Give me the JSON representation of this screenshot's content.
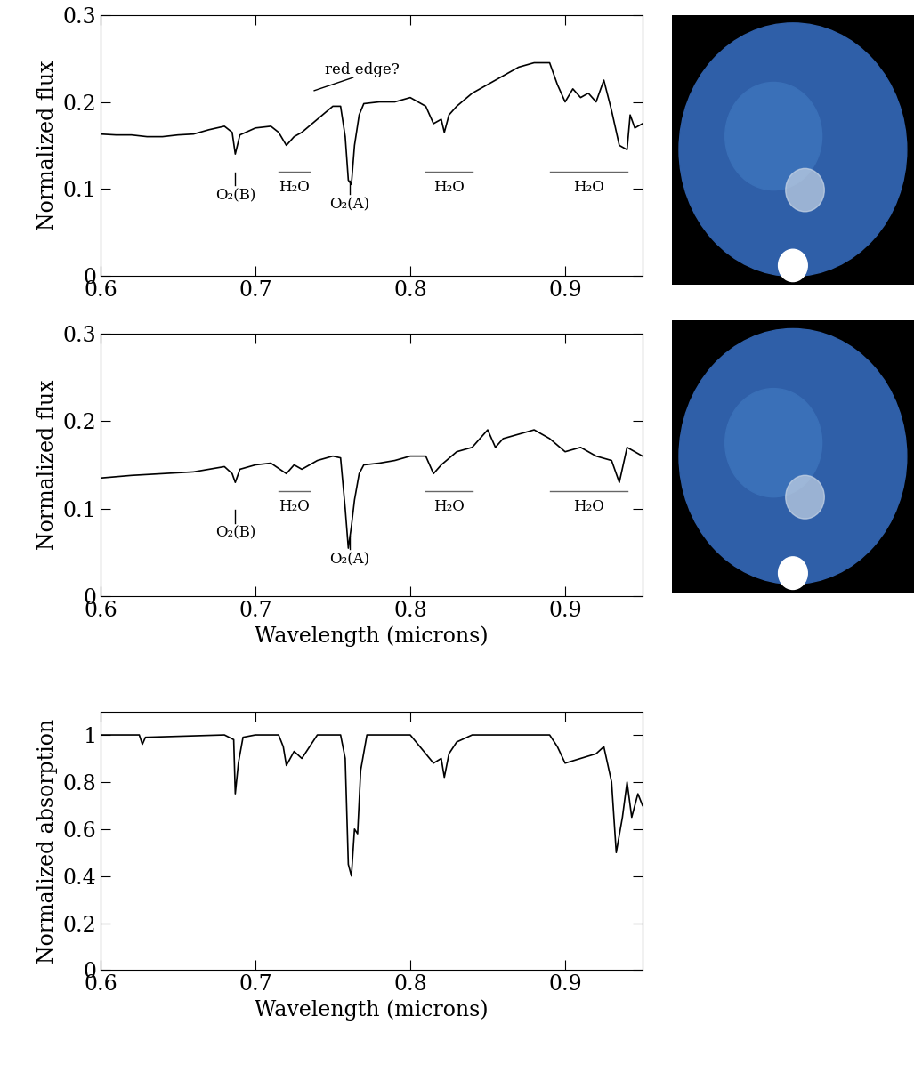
{
  "chart_data": [
    {
      "type": "line",
      "ylabel": "Normalized flux",
      "color": "#000000",
      "xlim": [
        0.6,
        0.95
      ],
      "xticks": [
        0.6,
        0.7,
        0.8,
        0.9
      ],
      "ylim": [
        0,
        0.3
      ],
      "yticks": [
        0,
        0.1,
        0.2,
        0.3
      ],
      "x": [
        0.6,
        0.61,
        0.62,
        0.63,
        0.64,
        0.65,
        0.66,
        0.67,
        0.68,
        0.685,
        0.687,
        0.69,
        0.7,
        0.71,
        0.715,
        0.72,
        0.725,
        0.73,
        0.74,
        0.75,
        0.755,
        0.758,
        0.76,
        0.762,
        0.764,
        0.767,
        0.77,
        0.78,
        0.79,
        0.8,
        0.81,
        0.815,
        0.82,
        0.822,
        0.825,
        0.83,
        0.84,
        0.85,
        0.86,
        0.87,
        0.88,
        0.89,
        0.895,
        0.9,
        0.905,
        0.91,
        0.915,
        0.92,
        0.925,
        0.93,
        0.935,
        0.94,
        0.942,
        0.945,
        0.95
      ],
      "values": [
        0.163,
        0.162,
        0.162,
        0.16,
        0.16,
        0.162,
        0.163,
        0.168,
        0.172,
        0.165,
        0.14,
        0.162,
        0.17,
        0.172,
        0.165,
        0.15,
        0.16,
        0.165,
        0.18,
        0.195,
        0.195,
        0.16,
        0.11,
        0.105,
        0.15,
        0.185,
        0.198,
        0.2,
        0.2,
        0.205,
        0.195,
        0.175,
        0.18,
        0.165,
        0.185,
        0.195,
        0.21,
        0.22,
        0.23,
        0.24,
        0.245,
        0.245,
        0.22,
        0.2,
        0.215,
        0.205,
        0.21,
        0.2,
        0.225,
        0.19,
        0.15,
        0.145,
        0.185,
        0.17,
        0.175
      ],
      "annotations": [
        {
          "text": "O₂(B)",
          "x": 0.687,
          "y": 0.095
        },
        {
          "text": "H₂O",
          "x": [
            0.715,
            0.735
          ],
          "y": 0.12
        },
        {
          "text": "O₂(A)",
          "x": 0.761,
          "y": 0.085
        },
        {
          "text": "H₂O",
          "x": [
            0.81,
            0.84
          ],
          "y": 0.12
        },
        {
          "text": "H₂O",
          "x": [
            0.89,
            0.94
          ],
          "y": 0.12
        },
        {
          "text": "red edge?",
          "x": 0.745,
          "y": 0.228
        }
      ]
    },
    {
      "type": "line",
      "ylabel": "Normalized flux",
      "xlabel": "Wavelength (microns)",
      "color": "#000000",
      "xlim": [
        0.6,
        0.95
      ],
      "xticks": [
        0.6,
        0.7,
        0.8,
        0.9
      ],
      "ylim": [
        0,
        0.3
      ],
      "yticks": [
        0,
        0.1,
        0.2,
        0.3
      ],
      "x": [
        0.6,
        0.62,
        0.64,
        0.66,
        0.68,
        0.685,
        0.687,
        0.69,
        0.7,
        0.71,
        0.72,
        0.725,
        0.73,
        0.74,
        0.75,
        0.755,
        0.758,
        0.76,
        0.762,
        0.764,
        0.767,
        0.77,
        0.78,
        0.79,
        0.8,
        0.81,
        0.815,
        0.82,
        0.83,
        0.84,
        0.85,
        0.855,
        0.86,
        0.87,
        0.88,
        0.89,
        0.9,
        0.91,
        0.92,
        0.93,
        0.935,
        0.94,
        0.945,
        0.95
      ],
      "values": [
        0.135,
        0.138,
        0.14,
        0.142,
        0.148,
        0.14,
        0.13,
        0.145,
        0.15,
        0.152,
        0.14,
        0.15,
        0.145,
        0.155,
        0.16,
        0.158,
        0.1,
        0.055,
        0.08,
        0.11,
        0.14,
        0.15,
        0.152,
        0.155,
        0.16,
        0.16,
        0.14,
        0.15,
        0.165,
        0.17,
        0.19,
        0.17,
        0.18,
        0.185,
        0.19,
        0.18,
        0.165,
        0.17,
        0.16,
        0.155,
        0.13,
        0.17,
        0.165,
        0.16
      ],
      "annotations": [
        {
          "text": "O₂(B)",
          "x": 0.687,
          "y": 0.075
        },
        {
          "text": "H₂O",
          "x": [
            0.715,
            0.735
          ],
          "y": 0.12
        },
        {
          "text": "O₂(A)",
          "x": 0.761,
          "y": 0.045
        },
        {
          "text": "H₂O",
          "x": [
            0.81,
            0.84
          ],
          "y": 0.12
        },
        {
          "text": "H₂O",
          "x": [
            0.89,
            0.94
          ],
          "y": 0.12
        }
      ]
    },
    {
      "type": "line",
      "ylabel": "Normalized absorption",
      "xlabel": "Wavelength (microns)",
      "color": "#000000",
      "xlim": [
        0.6,
        0.95
      ],
      "xticks": [
        0.6,
        0.7,
        0.8,
        0.9
      ],
      "ylim": [
        0,
        1.1
      ],
      "yticks": [
        0,
        0.2,
        0.4,
        0.6,
        0.8,
        1
      ],
      "x": [
        0.6,
        0.625,
        0.627,
        0.629,
        0.68,
        0.686,
        0.687,
        0.689,
        0.692,
        0.7,
        0.715,
        0.718,
        0.72,
        0.725,
        0.73,
        0.735,
        0.74,
        0.755,
        0.758,
        0.76,
        0.762,
        0.764,
        0.766,
        0.768,
        0.772,
        0.8,
        0.81,
        0.815,
        0.82,
        0.822,
        0.825,
        0.83,
        0.84,
        0.89,
        0.895,
        0.9,
        0.91,
        0.92,
        0.925,
        0.93,
        0.933,
        0.937,
        0.94,
        0.943,
        0.947,
        0.95
      ],
      "values": [
        1.0,
        1.0,
        0.96,
        0.99,
        1.0,
        0.98,
        0.75,
        0.88,
        0.99,
        1.0,
        1.0,
        0.95,
        0.87,
        0.93,
        0.9,
        0.95,
        1.0,
        1.0,
        0.9,
        0.45,
        0.4,
        0.6,
        0.58,
        0.85,
        1.0,
        1.0,
        0.92,
        0.88,
        0.9,
        0.82,
        0.92,
        0.97,
        1.0,
        1.0,
        0.95,
        0.88,
        0.9,
        0.92,
        0.95,
        0.8,
        0.5,
        0.65,
        0.8,
        0.65,
        0.75,
        0.7
      ]
    }
  ]
}
